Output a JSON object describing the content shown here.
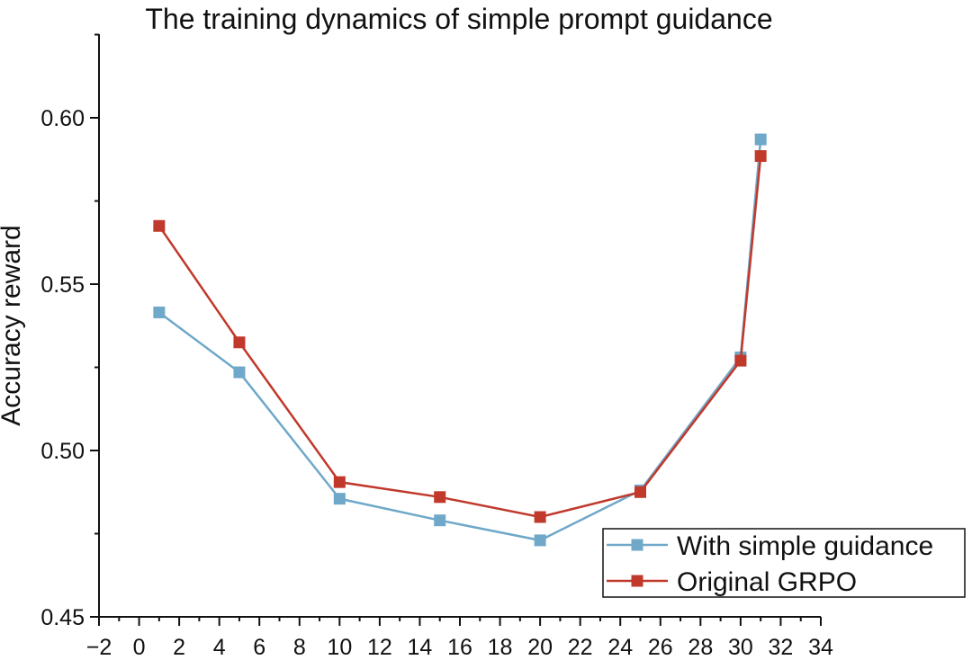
{
  "chart_data": {
    "type": "line",
    "title": "The training dynamics of simple prompt guidance",
    "xlabel": "",
    "ylabel": "Accuracy reward",
    "xlim": [
      -2,
      34
    ],
    "ylim": [
      0.45,
      0.625
    ],
    "x_ticks": [
      -2,
      0,
      2,
      4,
      6,
      8,
      10,
      12,
      14,
      16,
      18,
      20,
      22,
      24,
      26,
      28,
      30,
      32,
      34
    ],
    "x_tick_labels": [
      "−2",
      "0",
      "2",
      "4",
      "6",
      "8",
      "10",
      "12",
      "14",
      "16",
      "18",
      "20",
      "22",
      "24",
      "26",
      "28",
      "30",
      "32",
      "34"
    ],
    "y_ticks": [
      0.45,
      0.5,
      0.55,
      0.6
    ],
    "y_tick_labels": [
      "0.45",
      "0.50",
      "0.55",
      "0.60"
    ],
    "grid": false,
    "legend_position": "bottom-right",
    "series": [
      {
        "name": "With simple guidance",
        "color": "#6fa8c9",
        "marker": "square",
        "x": [
          1,
          5,
          10,
          15,
          20,
          25,
          30,
          31
        ],
        "y": [
          0.5415,
          0.5235,
          0.4855,
          0.479,
          0.473,
          0.488,
          0.528,
          0.5935
        ]
      },
      {
        "name": "Original GRPO",
        "color": "#c0392b",
        "marker": "square",
        "x": [
          1,
          5,
          10,
          15,
          20,
          25,
          30,
          31
        ],
        "y": [
          0.5675,
          0.5325,
          0.4905,
          0.486,
          0.48,
          0.4875,
          0.527,
          0.5885
        ]
      }
    ]
  }
}
